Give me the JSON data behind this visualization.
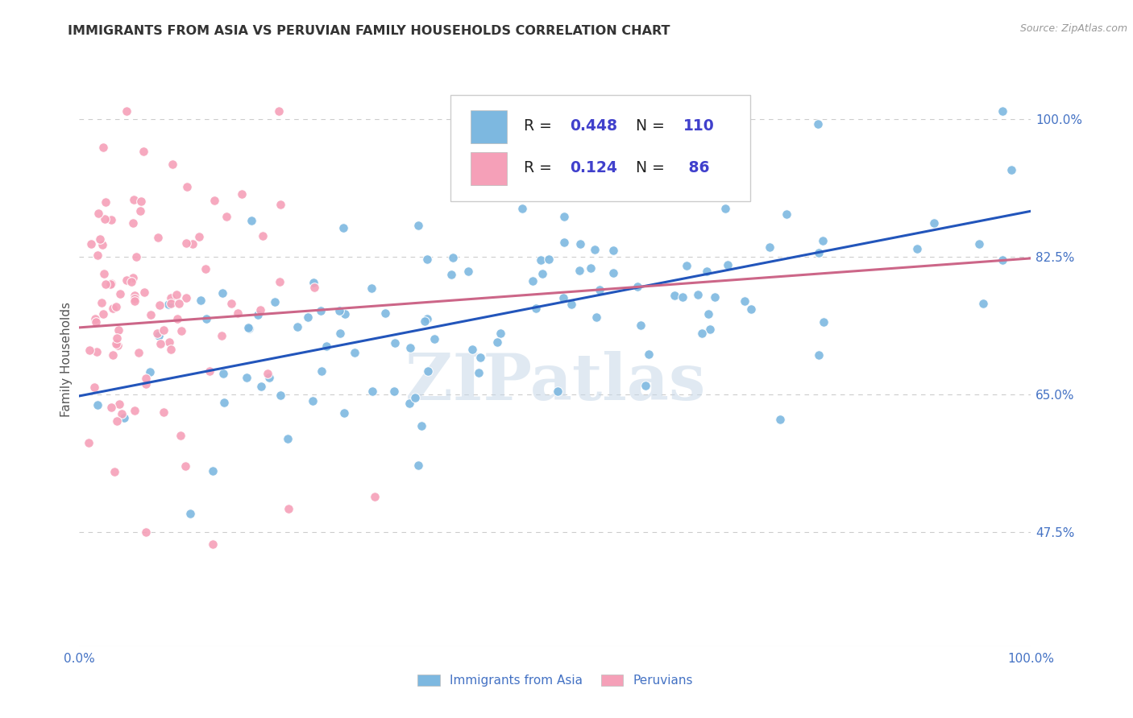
{
  "title": "IMMIGRANTS FROM ASIA VS PERUVIAN FAMILY HOUSEHOLDS CORRELATION CHART",
  "source": "Source: ZipAtlas.com",
  "ylabel": "Family Households",
  "ytick_labels": [
    "100.0%",
    "82.5%",
    "65.0%",
    "47.5%"
  ],
  "ytick_values": [
    1.0,
    0.825,
    0.65,
    0.475
  ],
  "xlim": [
    0.0,
    1.0
  ],
  "ylim": [
    0.33,
    1.06
  ],
  "blue_color": "#7db8e0",
  "pink_color": "#f5a0b8",
  "blue_line_color": "#2255bb",
  "pink_line_color": "#cc6688",
  "watermark": "ZIPatlas",
  "watermark_color": "#c8d8e8",
  "background_color": "#ffffff",
  "grid_color": "#cccccc",
  "title_color": "#333333",
  "axis_label_color": "#4472c4",
  "R_blue": 0.448,
  "N_blue": 110,
  "R_pink": 0.124,
  "N_pink": 86,
  "blue_intercept": 0.648,
  "blue_slope": 0.235,
  "pink_intercept": 0.735,
  "pink_slope": 0.088,
  "legend_text_color": "#4040cc",
  "source_color": "#999999"
}
